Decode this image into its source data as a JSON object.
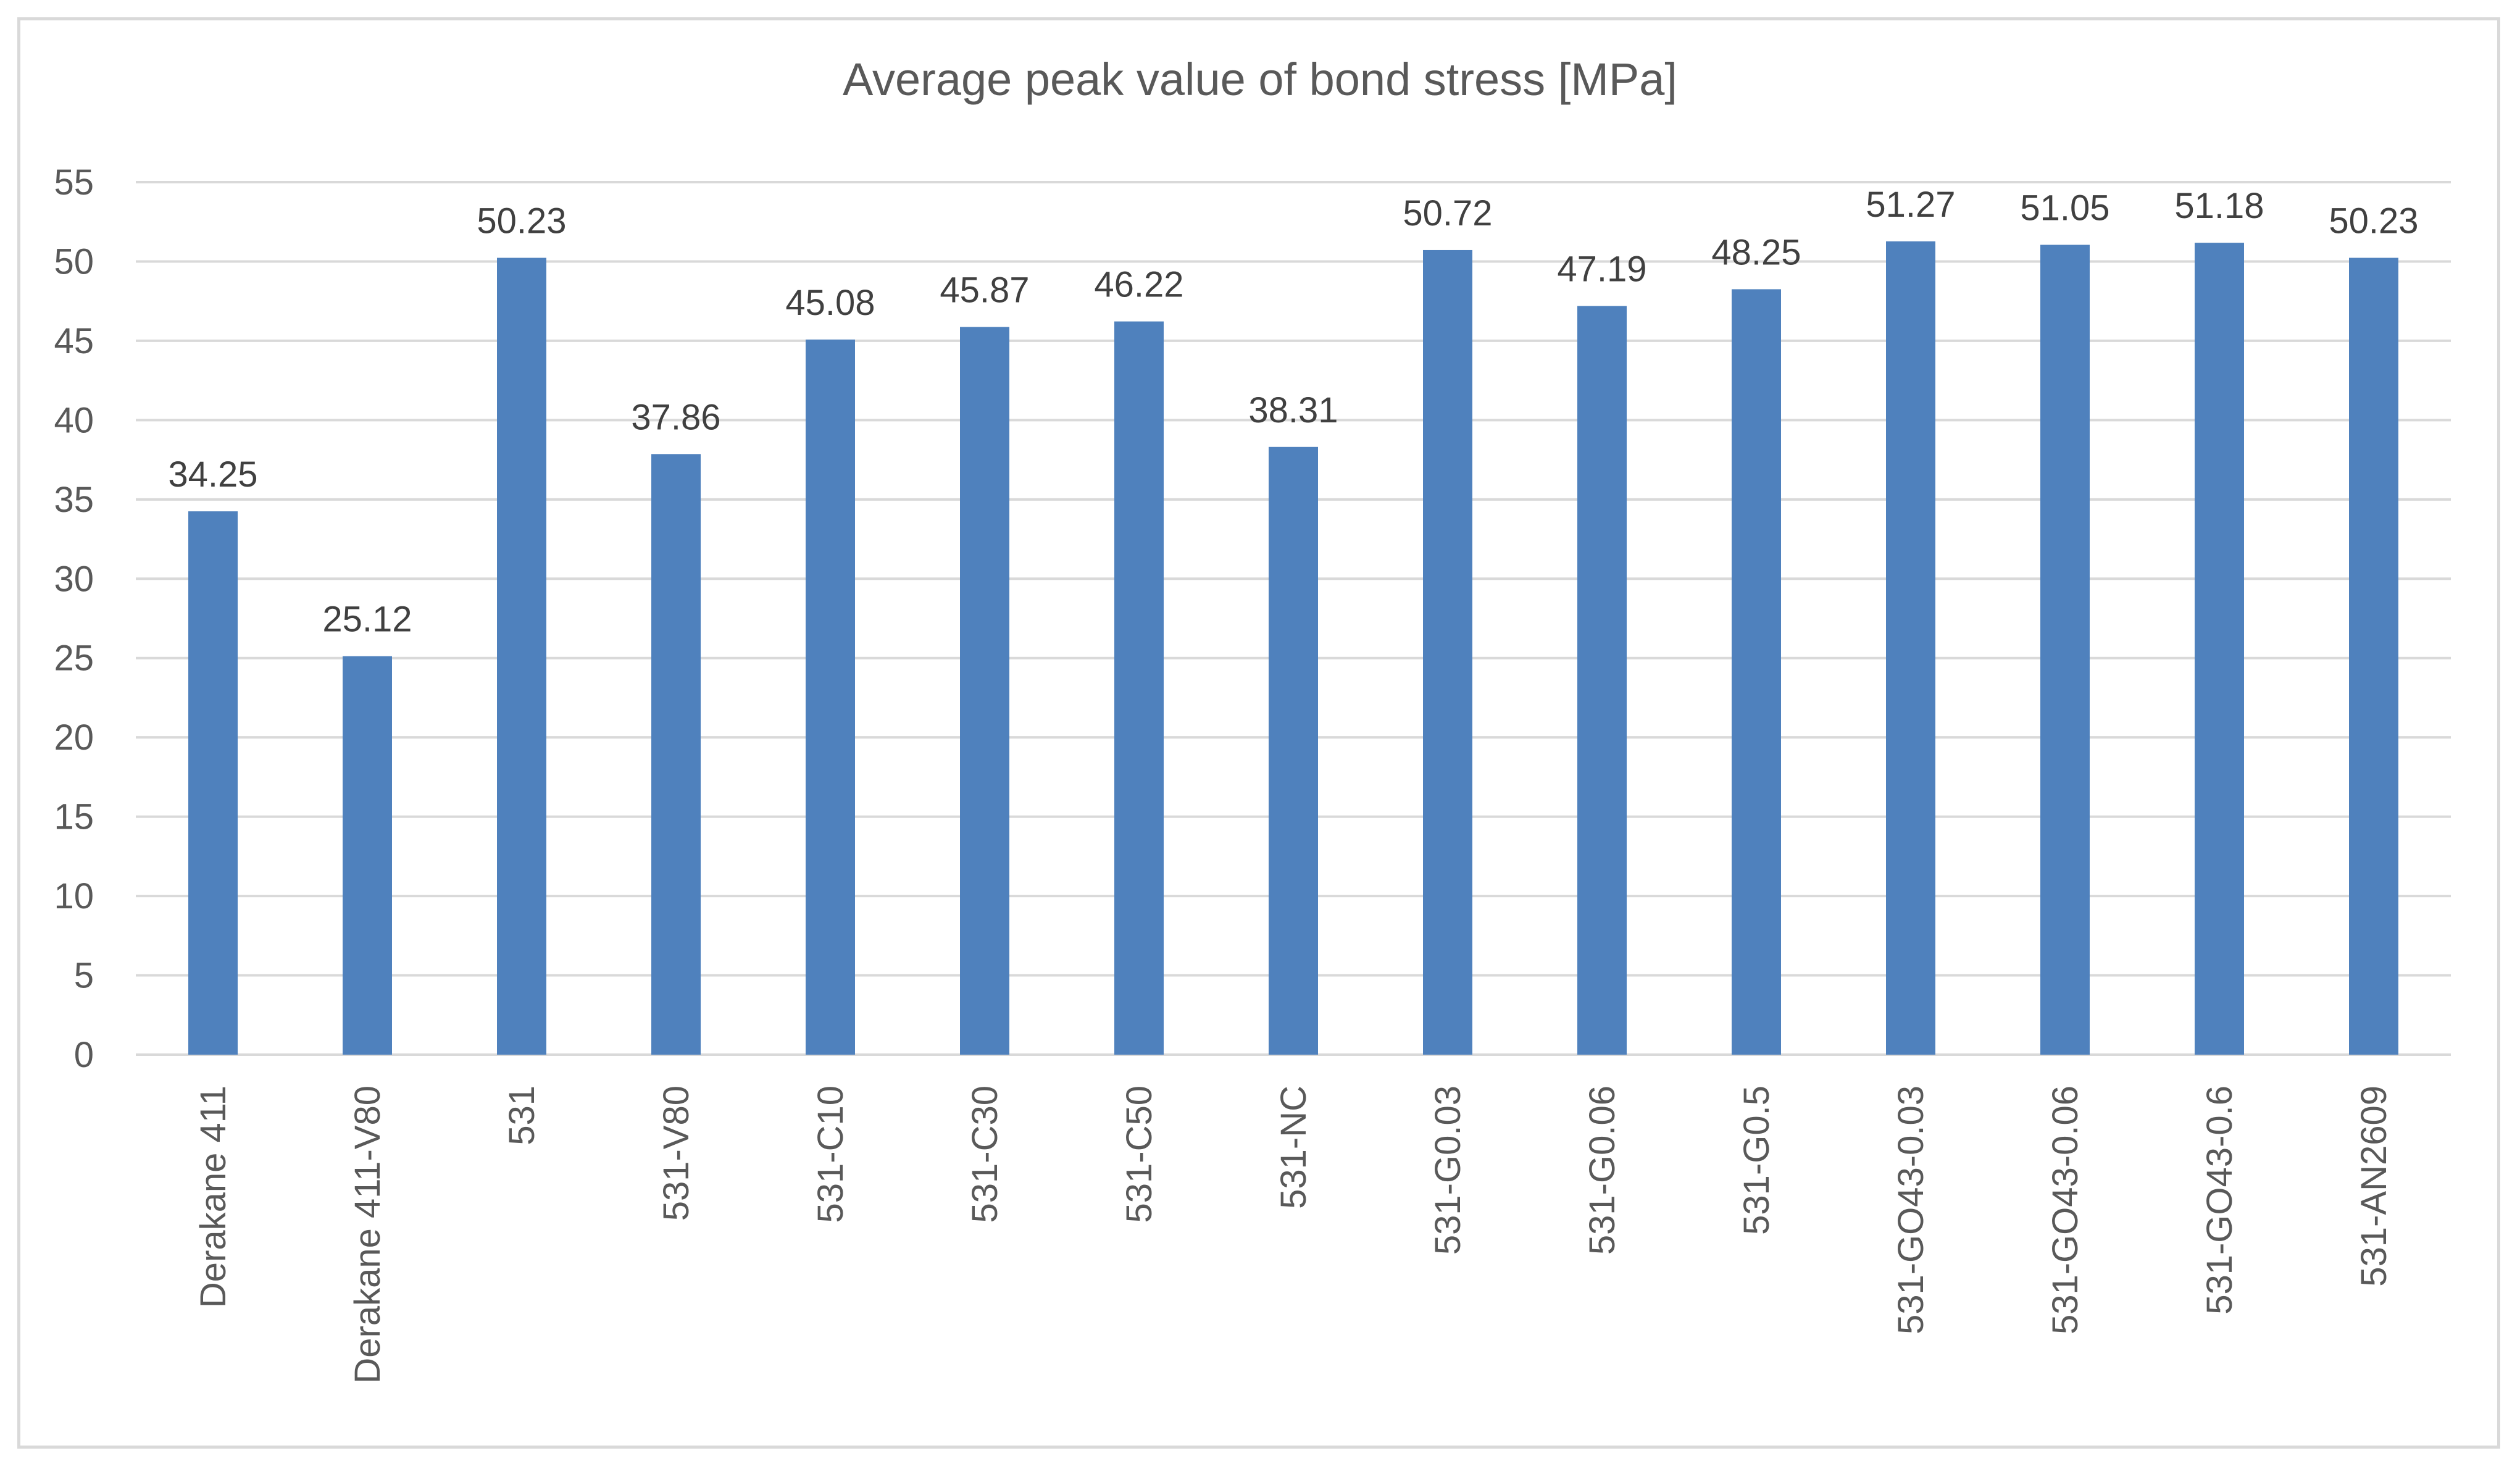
{
  "chart_data": {
    "type": "bar",
    "title": "Average peak value of bond stress [MPa]",
    "xlabel": "",
    "ylabel": "",
    "ylim": [
      0,
      55
    ],
    "yticks": [
      0,
      5,
      10,
      15,
      20,
      25,
      30,
      35,
      40,
      45,
      50,
      55
    ],
    "grid": true,
    "legend": "none",
    "bar_color": "#4f81bd",
    "categories": [
      "Derakane 411",
      "Derakane 411-V80",
      "531",
      "531-V80",
      "531-C10",
      "531-C30",
      "531-C50",
      "531-NC",
      "531-G0.03",
      "531-G0.06",
      "531-G0.5",
      "531-GO43-0.03",
      "531-GO43-0.06",
      "531-GO43-0.6",
      "531-AN2609"
    ],
    "values": [
      34.25,
      25.12,
      50.23,
      37.86,
      45.08,
      45.87,
      46.22,
      38.31,
      50.72,
      47.19,
      48.25,
      51.27,
      51.05,
      51.18,
      50.23
    ],
    "data_labels": [
      "34.25",
      "25.12",
      "50.23",
      "37.86",
      "45.08",
      "45.87",
      "46.22",
      "38.31",
      "50.72",
      "47.19",
      "48.25",
      "51.27",
      "51.05",
      "51.18",
      "50.23"
    ]
  }
}
